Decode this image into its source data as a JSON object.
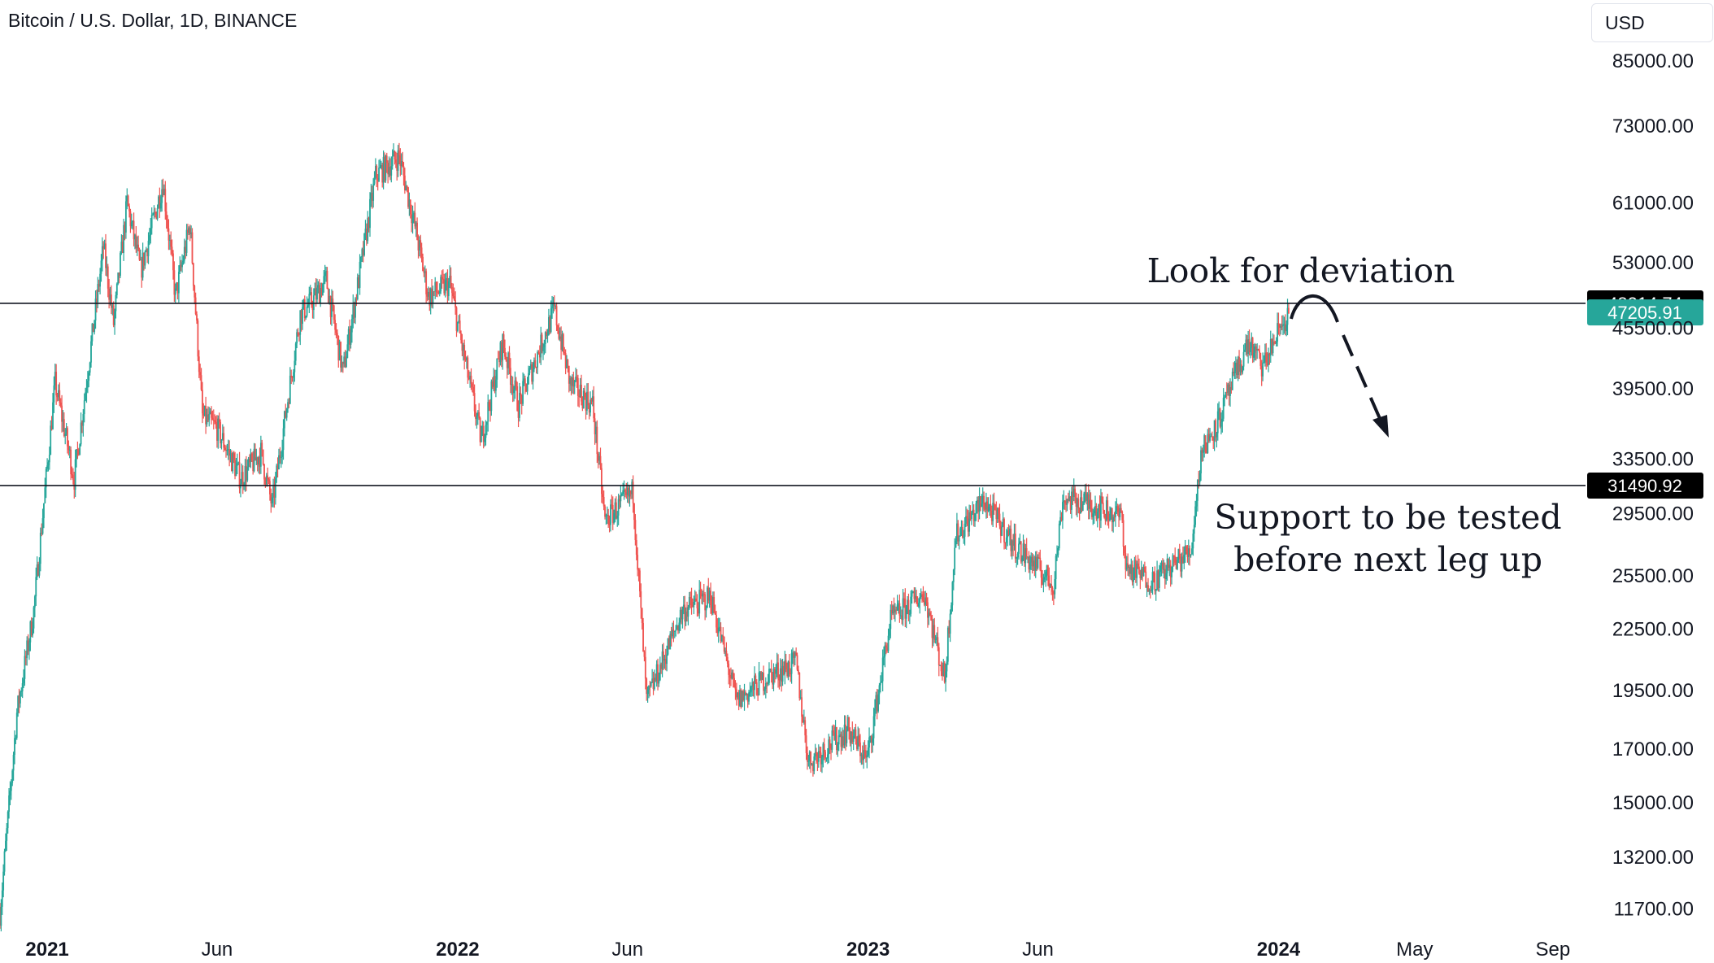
{
  "header": {
    "symbol_title": "Bitcoin / U.S. Dollar, 1D, BINANCE",
    "currency_label": "USD"
  },
  "colors": {
    "up": "#26a69a",
    "down": "#ef5350",
    "line": "#131722",
    "tag_dark": "#000000",
    "tag_current": "#26a69a",
    "background": "#ffffff"
  },
  "chart_data": {
    "type": "candlestick",
    "title": "Bitcoin / U.S. Dollar, 1D, BINANCE",
    "y_scale": "log",
    "ylim": [
      11000,
      98000
    ],
    "x_range": [
      "2020-11-20",
      "2024-09-30"
    ],
    "y_ticks": [
      "85000.00",
      "73000.00",
      "61000.00",
      "53000.00",
      "45500.00",
      "39500.00",
      "33500.00",
      "29500.00",
      "25500.00",
      "22500.00",
      "19500.00",
      "17000.00",
      "15000.00",
      "13200.00",
      "11700.00"
    ],
    "x_ticks": [
      {
        "label": "2021",
        "date": "2021-01-01",
        "bold": true
      },
      {
        "label": "Jun",
        "date": "2021-06-01",
        "bold": false
      },
      {
        "label": "2022",
        "date": "2022-01-01",
        "bold": true
      },
      {
        "label": "Jun",
        "date": "2022-06-01",
        "bold": false
      },
      {
        "label": "2023",
        "date": "2023-01-01",
        "bold": true
      },
      {
        "label": "Jun",
        "date": "2023-06-01",
        "bold": false
      },
      {
        "label": "2024",
        "date": "2024-01-01",
        "bold": true
      },
      {
        "label": "May",
        "date": "2024-05-01",
        "bold": false
      },
      {
        "label": "Sep",
        "date": "2024-09-01",
        "bold": false
      }
    ],
    "price_path": [
      [
        "2020-11-20",
        11600
      ],
      [
        "2020-12-05",
        18500
      ],
      [
        "2020-12-20",
        23500
      ],
      [
        "2021-01-08",
        40000
      ],
      [
        "2021-01-25",
        32000
      ],
      [
        "2021-02-20",
        55000
      ],
      [
        "2021-03-01",
        46000
      ],
      [
        "2021-03-13",
        61000
      ],
      [
        "2021-03-25",
        52000
      ],
      [
        "2021-04-14",
        64000
      ],
      [
        "2021-04-25",
        49000
      ],
      [
        "2021-05-08",
        58000
      ],
      [
        "2021-05-19",
        37000
      ],
      [
        "2021-06-01",
        36000
      ],
      [
        "2021-06-22",
        32000
      ],
      [
        "2021-07-10",
        34000
      ],
      [
        "2021-07-20",
        30000
      ],
      [
        "2021-08-14",
        47000
      ],
      [
        "2021-08-25",
        48500
      ],
      [
        "2021-09-06",
        51000
      ],
      [
        "2021-09-21",
        41000
      ],
      [
        "2021-10-05",
        51000
      ],
      [
        "2021-10-20",
        65000
      ],
      [
        "2021-11-10",
        68000
      ],
      [
        "2021-11-25",
        57000
      ],
      [
        "2021-12-06",
        49000
      ],
      [
        "2021-12-25",
        50500
      ],
      [
        "2022-01-05",
        43500
      ],
      [
        "2022-01-22",
        35000
      ],
      [
        "2022-02-10",
        44000
      ],
      [
        "2022-02-24",
        38000
      ],
      [
        "2022-03-28",
        47500
      ],
      [
        "2022-04-11",
        40000
      ],
      [
        "2022-05-01",
        38000
      ],
      [
        "2022-05-12",
        29000
      ],
      [
        "2022-06-06",
        31000
      ],
      [
        "2022-06-18",
        19000
      ],
      [
        "2022-07-20",
        23500
      ],
      [
        "2022-08-14",
        24300
      ],
      [
        "2022-09-06",
        19000
      ],
      [
        "2022-10-05",
        20200
      ],
      [
        "2022-10-29",
        20800
      ],
      [
        "2022-11-09",
        16500
      ],
      [
        "2022-12-14",
        17800
      ],
      [
        "2022-12-31",
        16600
      ],
      [
        "2023-01-21",
        23000
      ],
      [
        "2023-02-20",
        24500
      ],
      [
        "2023-03-10",
        20000
      ],
      [
        "2023-03-20",
        28000
      ],
      [
        "2023-04-14",
        30400
      ],
      [
        "2023-05-10",
        27500
      ],
      [
        "2023-06-15",
        25000
      ],
      [
        "2023-06-23",
        30500
      ],
      [
        "2023-07-14",
        30300
      ],
      [
        "2023-08-15",
        29200
      ],
      [
        "2023-08-18",
        26000
      ],
      [
        "2023-09-11",
        25200
      ],
      [
        "2023-10-15",
        27000
      ],
      [
        "2023-10-24",
        34000
      ],
      [
        "2023-11-10",
        37000
      ],
      [
        "2023-12-05",
        44000
      ],
      [
        "2023-12-18",
        41500
      ],
      [
        "2024-01-02",
        45500
      ],
      [
        "2024-01-10",
        47000
      ]
    ],
    "levels": [
      {
        "name": "resistance",
        "value": 48214.74,
        "label": "48214.74"
      },
      {
        "name": "support",
        "value": 31490.92,
        "label": "31490.92"
      }
    ],
    "current_price": {
      "value": 47205.91,
      "label": "47205.91"
    },
    "annotations": [
      {
        "name": "deviation-note",
        "lines": [
          "Look for deviation"
        ]
      },
      {
        "name": "support-note",
        "lines": [
          "Support to be tested",
          "before next leg up"
        ]
      }
    ]
  }
}
